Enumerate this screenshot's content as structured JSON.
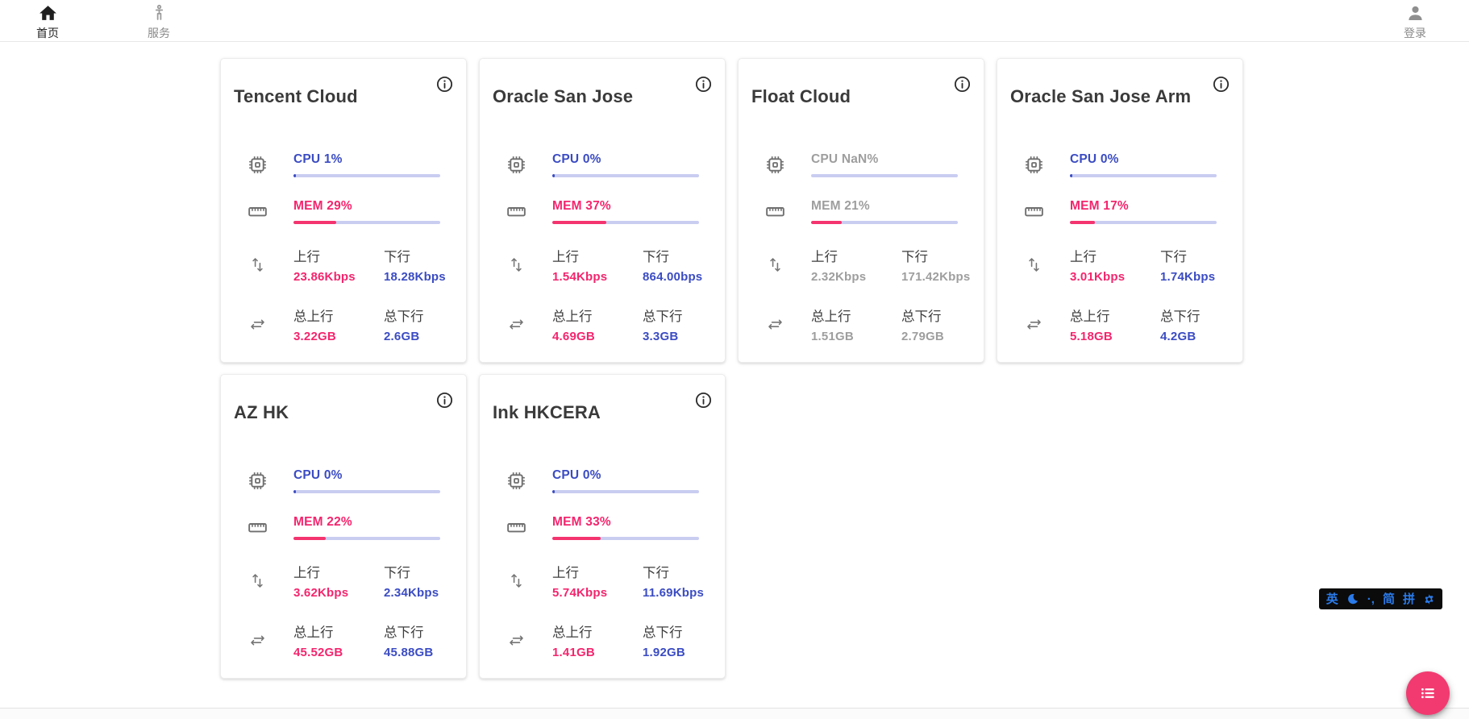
{
  "nav": {
    "items": [
      {
        "label": "首页",
        "icon": "home-icon",
        "active": true
      },
      {
        "label": "服务",
        "icon": "services-person-icon",
        "active": false
      }
    ],
    "login": {
      "label": "登录",
      "icon": "account-icon"
    }
  },
  "labels": {
    "up": "上行",
    "down": "下行",
    "total_up": "总上行",
    "total_down": "总下行"
  },
  "colors": {
    "accent_blue": "#3b4cc3",
    "accent_pink": "#f4256d",
    "bar_track": "#c9cdf0",
    "offline_gray": "#9e9e9e",
    "fab_pink": "#f23a70",
    "ime_blue": "#2a7ae9"
  },
  "servers": [
    {
      "name": "Tencent Cloud",
      "cpu_label": "CPU 1%",
      "cpu_pct": 1,
      "mem_label": "MEM 29%",
      "mem_pct": 29,
      "up": "23.86Kbps",
      "down": "18.28Kbps",
      "total_up": "3.22GB",
      "total_down": "2.6GB",
      "online": true
    },
    {
      "name": "Oracle San Jose",
      "cpu_label": "CPU 0%",
      "cpu_pct": 0,
      "mem_label": "MEM 37%",
      "mem_pct": 37,
      "up": "1.54Kbps",
      "down": "864.00bps",
      "total_up": "4.69GB",
      "total_down": "3.3GB",
      "online": true
    },
    {
      "name": "Float Cloud",
      "cpu_label": "CPU NaN%",
      "cpu_pct": 0,
      "mem_label": "MEM 21%",
      "mem_pct": 21,
      "up": "2.32Kbps",
      "down": "171.42Kbps",
      "total_up": "1.51GB",
      "total_down": "2.79GB",
      "online": false
    },
    {
      "name": "Oracle San Jose Arm",
      "cpu_label": "CPU 0%",
      "cpu_pct": 0,
      "mem_label": "MEM 17%",
      "mem_pct": 17,
      "up": "3.01Kbps",
      "down": "1.74Kbps",
      "total_up": "5.18GB",
      "total_down": "4.2GB",
      "online": true
    },
    {
      "name": "AZ HK",
      "cpu_label": "CPU 0%",
      "cpu_pct": 0,
      "mem_label": "MEM 22%",
      "mem_pct": 22,
      "up": "3.62Kbps",
      "down": "2.34Kbps",
      "total_up": "45.52GB",
      "total_down": "45.88GB",
      "online": true
    },
    {
      "name": "Ink HKCERA",
      "cpu_label": "CPU 0%",
      "cpu_pct": 0,
      "mem_label": "MEM 33%",
      "mem_pct": 33,
      "up": "5.74Kbps",
      "down": "11.69Kbps",
      "total_up": "1.41GB",
      "total_down": "1.92GB",
      "online": true
    }
  ],
  "ime_bar": {
    "lang": "英",
    "punct": "·,",
    "simplified": "简",
    "pinyin": "拼"
  }
}
